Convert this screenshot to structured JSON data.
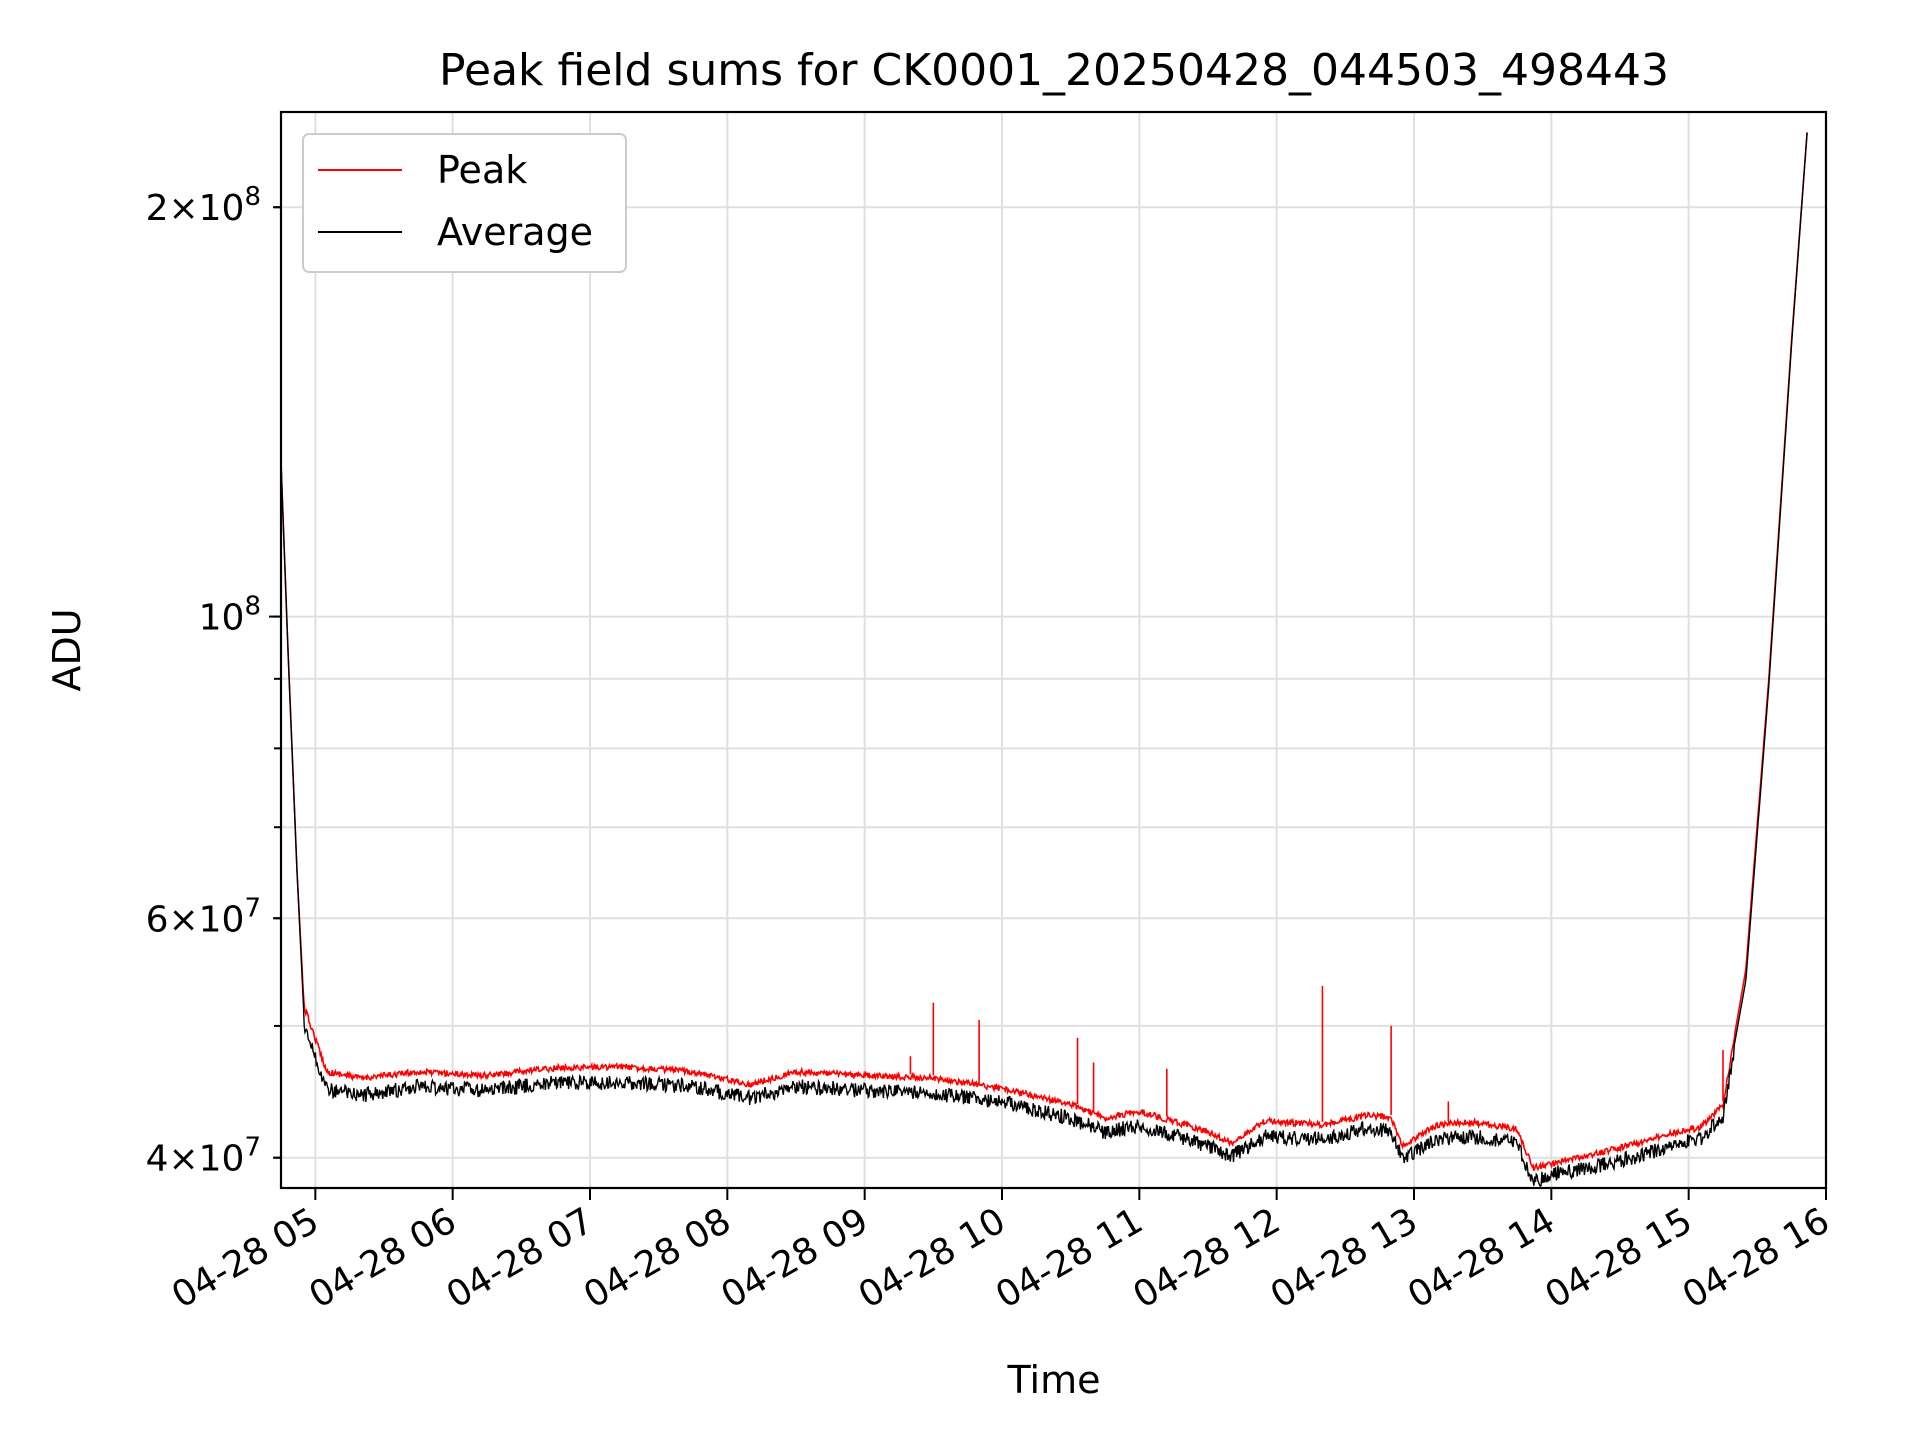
{
  "chart_data": {
    "type": "line",
    "title": "Peak field sums for CK0001_20250428_044503_498443",
    "xlabel": "Time",
    "ylabel": "ADU",
    "x_scale": "time",
    "y_scale": "log",
    "xlim": [
      "2025-04-28 04:45",
      "2025-04-28 16:00"
    ],
    "ylim": [
      38000000,
      235000000
    ],
    "grid": true,
    "legend_position": "upper-left",
    "x_ticks": [
      "04-28 05",
      "04-28 06",
      "04-28 07",
      "04-28 08",
      "04-28 09",
      "04-28 10",
      "04-28 11",
      "04-28 12",
      "04-28 13",
      "04-28 14",
      "04-28 15",
      "04-28 16"
    ],
    "y_ticks_major": [
      {
        "value": 100000000,
        "mantissa": "",
        "exponent": "8",
        "base": "10"
      }
    ],
    "y_ticks_minor": [
      {
        "value": 40000000,
        "mantissa": "4",
        "times": "×",
        "base": "10",
        "exponent": "7"
      },
      {
        "value": 60000000,
        "mantissa": "6",
        "times": "×",
        "base": "10",
        "exponent": "7"
      },
      {
        "value": 200000000,
        "mantissa": "2",
        "times": "×",
        "base": "10",
        "exponent": "8"
      }
    ],
    "y_gridlines": [
      40000000,
      50000000,
      60000000,
      70000000,
      80000000,
      90000000,
      100000000,
      200000000
    ],
    "series": [
      {
        "name": "Peak",
        "color": "#ff0000",
        "points": [
          [
            "04:45",
            130000000
          ],
          [
            "04:48",
            95000000
          ],
          [
            "04:52",
            65000000
          ],
          [
            "04:55",
            52000000
          ],
          [
            "05:05",
            46500000
          ],
          [
            "05:20",
            46000000
          ],
          [
            "05:45",
            46500000
          ],
          [
            "06:15",
            46200000
          ],
          [
            "06:45",
            46800000
          ],
          [
            "07:15",
            46900000
          ],
          [
            "07:45",
            46500000
          ],
          [
            "08:10",
            45500000
          ],
          [
            "08:30",
            46500000
          ],
          [
            "09:00",
            46200000
          ],
          [
            "09:30",
            46000000
          ],
          [
            "10:00",
            45200000
          ],
          [
            "10:30",
            44000000
          ],
          [
            "10:45",
            43000000
          ],
          [
            "11:00",
            43500000
          ],
          [
            "11:30",
            42000000
          ],
          [
            "11:40",
            41200000
          ],
          [
            "11:55",
            42800000
          ],
          [
            "12:20",
            42500000
          ],
          [
            "12:40",
            43200000
          ],
          [
            "12:50",
            43000000
          ],
          [
            "12:55",
            41000000
          ],
          [
            "13:10",
            42500000
          ],
          [
            "13:25",
            42700000
          ],
          [
            "13:45",
            42200000
          ],
          [
            "13:52",
            39500000
          ],
          [
            "14:00",
            39800000
          ],
          [
            "14:20",
            40500000
          ],
          [
            "14:40",
            41300000
          ],
          [
            "14:55",
            42000000
          ],
          [
            "15:05",
            42300000
          ],
          [
            "15:15",
            44000000
          ],
          [
            "15:25",
            55000000
          ],
          [
            "15:35",
            90000000
          ],
          [
            "15:45",
            160000000
          ],
          [
            "15:52",
            230000000
          ]
        ],
        "spikes": [
          [
            "09:20",
            47500000
          ],
          [
            "09:30",
            52000000
          ],
          [
            "09:50",
            50500000
          ],
          [
            "10:33",
            49000000
          ],
          [
            "10:40",
            47000000
          ],
          [
            "11:12",
            46500000
          ],
          [
            "12:20",
            53500000
          ],
          [
            "12:50",
            50000000
          ],
          [
            "13:15",
            44000000
          ],
          [
            "15:15",
            48000000
          ]
        ]
      },
      {
        "name": "Average",
        "color": "#000000",
        "points": [
          [
            "04:45",
            130000000
          ],
          [
            "04:48",
            95000000
          ],
          [
            "04:52",
            65000000
          ],
          [
            "04:55",
            51000000
          ],
          [
            "05:05",
            45500000
          ],
          [
            "05:20",
            45000000
          ],
          [
            "05:45",
            45700000
          ],
          [
            "06:15",
            45400000
          ],
          [
            "06:45",
            46000000
          ],
          [
            "07:15",
            46000000
          ],
          [
            "07:45",
            45700000
          ],
          [
            "08:10",
            44800000
          ],
          [
            "08:30",
            45700000
          ],
          [
            "09:00",
            45400000
          ],
          [
            "09:30",
            45200000
          ],
          [
            "10:00",
            44500000
          ],
          [
            "10:30",
            43300000
          ],
          [
            "10:45",
            42300000
          ],
          [
            "11:00",
            42800000
          ],
          [
            "11:30",
            41300000
          ],
          [
            "11:40",
            40600000
          ],
          [
            "11:55",
            42000000
          ],
          [
            "12:20",
            41800000
          ],
          [
            "12:40",
            42600000
          ],
          [
            "12:50",
            42400000
          ],
          [
            "12:55",
            40400000
          ],
          [
            "13:10",
            41800000
          ],
          [
            "13:25",
            42000000
          ],
          [
            "13:45",
            41500000
          ],
          [
            "13:52",
            38900000
          ],
          [
            "14:00",
            39400000
          ],
          [
            "14:20",
            39900000
          ],
          [
            "14:40",
            40700000
          ],
          [
            "14:55",
            41500000
          ],
          [
            "15:05",
            41800000
          ],
          [
            "15:15",
            43500000
          ],
          [
            "15:25",
            54000000
          ],
          [
            "15:35",
            89000000
          ],
          [
            "15:45",
            159000000
          ],
          [
            "15:52",
            230000000
          ]
        ]
      }
    ]
  }
}
